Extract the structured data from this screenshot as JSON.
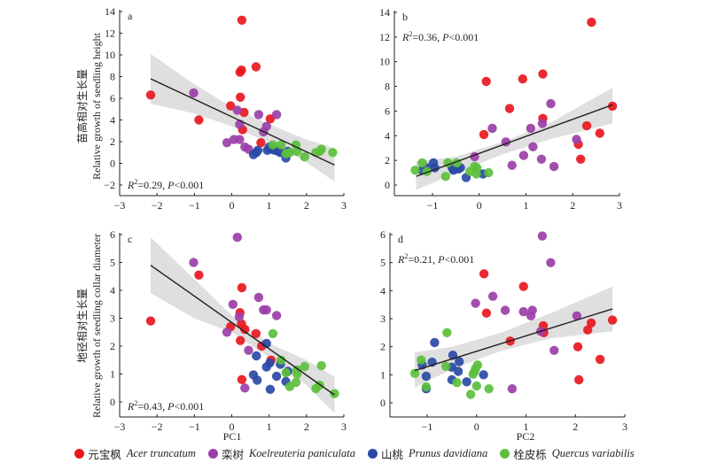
{
  "legend": [
    {
      "key": "acer",
      "cn": "元宝枫",
      "sci": "Acer truncatum",
      "color": "#e8181e"
    },
    {
      "key": "koel",
      "cn": "栾树",
      "sci": "Koelreuteria paniculata",
      "color": "#9b3fa8"
    },
    {
      "key": "prunus",
      "cn": "山桃",
      "sci": "Prunus davidiana",
      "color": "#2a4aa6"
    },
    {
      "key": "quercus",
      "cn": "栓皮栎",
      "sci": "Quercus variabilis",
      "color": "#5cbf3c"
    }
  ],
  "y_labels": {
    "top_cn": "苗高相对生长量",
    "top_en": "Relative growth of seedling height",
    "bottom_cn": "地径相对生长量",
    "bottom_en": "Relative growth of seedling collar diameter"
  },
  "x_labels": {
    "left": "PC1",
    "right": "PC2"
  },
  "chart_data": [
    {
      "type": "scatter",
      "panel": "a",
      "xlabel": "PC1",
      "ylabel": "苗高相对生长量 Relative growth of seedling height",
      "xlim": [
        -3,
        3
      ],
      "ylim": [
        -3,
        14
      ],
      "xticks": [
        -3,
        -2,
        -1,
        0,
        1,
        2,
        3
      ],
      "yticks": [
        -2,
        0,
        2,
        4,
        6,
        8,
        10,
        12,
        14
      ],
      "stat": {
        "r2": "0.29",
        "p": "0.001",
        "position": "bottom-left"
      },
      "fit": {
        "x": [
          -2.17,
          2.75
        ],
        "y": [
          7.8,
          -0.15
        ]
      },
      "ci_band": {
        "x": [
          -2.17,
          -1,
          0,
          1,
          2,
          2.75
        ],
        "upper": [
          10.1,
          7.3,
          5.2,
          3.6,
          2.2,
          1.4
        ],
        "lower": [
          5.5,
          4.6,
          3.4,
          1.9,
          0.1,
          -1.7
        ]
      },
      "series": [
        {
          "name": "acer",
          "points": [
            [
              -2.17,
              6.3
            ],
            [
              -0.88,
              4.0
            ],
            [
              -0.03,
              5.3
            ],
            [
              0.27,
              13.2
            ],
            [
              0.22,
              8.4
            ],
            [
              0.26,
              8.6
            ],
            [
              0.65,
              8.9
            ],
            [
              0.23,
              6.1
            ],
            [
              0.33,
              4.7
            ],
            [
              0.29,
              3.1
            ],
            [
              1.03,
              4.1
            ],
            [
              0.78,
              1.9
            ]
          ]
        },
        {
          "name": "koel",
          "points": [
            [
              -1.02,
              6.5
            ],
            [
              0.15,
              4.9
            ],
            [
              0.21,
              3.6
            ],
            [
              0.72,
              4.5
            ],
            [
              1.2,
              4.5
            ],
            [
              0.93,
              3.4
            ],
            [
              0.85,
              2.9
            ],
            [
              -0.13,
              1.9
            ],
            [
              0.06,
              2.2
            ],
            [
              0.21,
              2.2
            ],
            [
              0.35,
              1.5
            ],
            [
              0.45,
              1.3
            ]
          ]
        },
        {
          "name": "prunus",
          "points": [
            [
              0.58,
              0.8
            ],
            [
              0.66,
              1.0
            ],
            [
              0.7,
              1.2
            ],
            [
              0.95,
              1.2
            ],
            [
              1.0,
              1.5
            ],
            [
              1.05,
              1.3
            ],
            [
              1.15,
              1.2
            ],
            [
              1.25,
              1.1
            ],
            [
              1.3,
              1.0
            ],
            [
              1.45,
              0.5
            ],
            [
              1.5,
              1.1
            ]
          ]
        },
        {
          "name": "quercus",
          "points": [
            [
              1.1,
              1.7
            ],
            [
              1.32,
              1.7
            ],
            [
              1.45,
              0.9
            ],
            [
              1.55,
              1.0
            ],
            [
              1.72,
              1.7
            ],
            [
              1.75,
              1.1
            ],
            [
              1.95,
              0.6
            ],
            [
              2.25,
              1.0
            ],
            [
              2.35,
              1.1
            ],
            [
              2.4,
              1.3
            ],
            [
              2.7,
              1.0
            ]
          ]
        }
      ]
    },
    {
      "type": "scatter",
      "panel": "b",
      "xlabel": "PC2",
      "ylabel": "",
      "xlim": [
        -1.8,
        3
      ],
      "ylim": [
        -0.8,
        14
      ],
      "xticks": [
        -1,
        0,
        1,
        2,
        3
      ],
      "yticks": [
        0,
        2,
        4,
        6,
        8,
        10,
        12,
        14
      ],
      "stat": {
        "r2": "0.36",
        "p": "0.001",
        "position": "top-left"
      },
      "fit": {
        "x": [
          -1.35,
          2.85
        ],
        "y": [
          0.7,
          6.5
        ]
      },
      "ci_band": {
        "x": [
          -1.35,
          -0.5,
          0.5,
          1.5,
          2.85
        ],
        "upper": [
          1.9,
          2.3,
          3.5,
          5.0,
          7.9
        ],
        "lower": [
          -0.4,
          1.0,
          2.5,
          3.7,
          5.0
        ]
      },
      "series": [
        {
          "name": "acer",
          "points": [
            [
              0.15,
              8.4
            ],
            [
              0.93,
              8.6
            ],
            [
              1.36,
              9.0
            ],
            [
              2.4,
              13.2
            ],
            [
              0.65,
              6.2
            ],
            [
              1.36,
              5.4
            ],
            [
              0.1,
              4.1
            ],
            [
              2.3,
              4.8
            ],
            [
              2.85,
              6.4
            ],
            [
              2.58,
              4.2
            ],
            [
              2.12,
              3.3
            ],
            [
              2.17,
              2.1
            ]
          ]
        },
        {
          "name": "koel",
          "points": [
            [
              1.53,
              6.6
            ],
            [
              1.35,
              5.0
            ],
            [
              1.1,
              4.6
            ],
            [
              0.28,
              4.6
            ],
            [
              0.57,
              3.5
            ],
            [
              1.15,
              3.1
            ],
            [
              2.08,
              3.7
            ],
            [
              -0.1,
              2.3
            ],
            [
              0.95,
              2.4
            ],
            [
              1.33,
              2.1
            ],
            [
              0.7,
              1.6
            ],
            [
              1.6,
              1.5
            ]
          ]
        },
        {
          "name": "prunus",
          "points": [
            [
              -1.22,
              1.2
            ],
            [
              -1.12,
              1.4
            ],
            [
              -0.98,
              1.8
            ],
            [
              -0.95,
              1.4
            ],
            [
              -0.58,
              1.4
            ],
            [
              -0.55,
              1.2
            ],
            [
              -0.45,
              1.3
            ],
            [
              -0.4,
              1.4
            ],
            [
              -0.28,
              0.6
            ],
            [
              0.08,
              0.9
            ]
          ]
        },
        {
          "name": "quercus",
          "points": [
            [
              -1.37,
              1.2
            ],
            [
              -1.22,
              1.8
            ],
            [
              -1.12,
              1.1
            ],
            [
              -0.72,
              0.7
            ],
            [
              -0.67,
              1.8
            ],
            [
              -0.48,
              1.8
            ],
            [
              -0.2,
              1.1
            ],
            [
              -0.1,
              1.5
            ],
            [
              -0.05,
              1.4
            ],
            [
              -0.06,
              0.9
            ],
            [
              0.2,
              1.0
            ]
          ]
        }
      ]
    },
    {
      "type": "scatter",
      "panel": "c",
      "xlabel": "PC1",
      "ylabel": "地径相对生长量 Relative growth of seedling collar diameter",
      "xlim": [
        -3,
        3
      ],
      "ylim": [
        -0.5,
        6
      ],
      "xticks": [
        -3,
        -2,
        -1,
        0,
        1,
        2,
        3
      ],
      "yticks": [
        0,
        1,
        2,
        3,
        4,
        5,
        6
      ],
      "stat": {
        "r2": "0.43",
        "p": "0.001",
        "position": "bottom-left"
      },
      "fit": {
        "x": [
          -2.17,
          2.75
        ],
        "y": [
          4.9,
          0.25
        ]
      },
      "ci_band": {
        "x": [
          -2.17,
          -1,
          0,
          1,
          2,
          2.75
        ],
        "upper": [
          5.9,
          4.4,
          3.1,
          2.1,
          1.5,
          0.9
        ],
        "lower": [
          3.9,
          3.0,
          2.5,
          1.6,
          0.6,
          -0.4
        ]
      },
      "series": [
        {
          "name": "acer",
          "points": [
            [
              -2.17,
              2.9
            ],
            [
              -0.88,
              4.55
            ],
            [
              0.27,
              4.1
            ],
            [
              0.22,
              3.2
            ],
            [
              0.26,
              2.8
            ],
            [
              0.35,
              2.6
            ],
            [
              -0.03,
              2.7
            ],
            [
              0.65,
              2.45
            ],
            [
              0.23,
              2.2
            ],
            [
              0.8,
              2.0
            ],
            [
              1.05,
              1.5
            ],
            [
              0.27,
              0.8
            ]
          ]
        },
        {
          "name": "koel",
          "points": [
            [
              0.15,
              5.9
            ],
            [
              -1.02,
              5.0
            ],
            [
              0.72,
              3.75
            ],
            [
              0.03,
              3.5
            ],
            [
              0.85,
              3.3
            ],
            [
              0.93,
              3.3
            ],
            [
              1.2,
              3.1
            ],
            [
              0.2,
              3.05
            ],
            [
              -0.13,
              2.5
            ],
            [
              0.45,
              1.85
            ],
            [
              0.35,
              0.5
            ]
          ]
        },
        {
          "name": "prunus",
          "points": [
            [
              0.93,
              2.1
            ],
            [
              0.66,
              1.65
            ],
            [
              1.02,
              1.4
            ],
            [
              1.3,
              1.35
            ],
            [
              0.93,
              1.25
            ],
            [
              1.5,
              1.1
            ],
            [
              0.58,
              0.97
            ],
            [
              1.2,
              0.92
            ],
            [
              0.68,
              0.78
            ],
            [
              1.45,
              0.73
            ],
            [
              1.03,
              0.45
            ]
          ]
        },
        {
          "name": "quercus",
          "points": [
            [
              1.1,
              2.45
            ],
            [
              1.32,
              1.5
            ],
            [
              1.95,
              1.27
            ],
            [
              2.4,
              1.3
            ],
            [
              1.75,
              1.15
            ],
            [
              1.75,
              1.0
            ],
            [
              1.45,
              1.05
            ],
            [
              1.72,
              0.7
            ],
            [
              1.55,
              0.55
            ],
            [
              2.35,
              0.6
            ],
            [
              2.25,
              0.48
            ],
            [
              2.75,
              0.3
            ]
          ]
        }
      ]
    },
    {
      "type": "scatter",
      "panel": "d",
      "xlabel": "PC2",
      "ylabel": "",
      "xlim": [
        -1.75,
        3
      ],
      "ylim": [
        -0.5,
        6
      ],
      "xticks": [
        -1,
        0,
        1,
        2,
        3
      ],
      "yticks": [
        0,
        1,
        2,
        3,
        4,
        5,
        6
      ],
      "stat": {
        "r2": "0.21",
        "p": "0.001",
        "position": "top-left"
      },
      "fit": {
        "x": [
          -1.25,
          2.75
        ],
        "y": [
          1.15,
          3.35
        ]
      },
      "ci_band": {
        "x": [
          -1.25,
          -0.5,
          0.5,
          1.5,
          2.75
        ],
        "upper": [
          1.8,
          2.0,
          2.5,
          3.2,
          4.15
        ],
        "lower": [
          0.55,
          1.2,
          1.85,
          2.3,
          2.55
        ]
      },
      "series": [
        {
          "name": "acer",
          "points": [
            [
              0.15,
              4.6
            ],
            [
              0.95,
              4.15
            ],
            [
              0.2,
              3.2
            ],
            [
              1.35,
              2.75
            ],
            [
              1.36,
              2.5
            ],
            [
              0.68,
              2.2
            ],
            [
              2.05,
              2.0
            ],
            [
              2.25,
              2.6
            ],
            [
              2.32,
              2.85
            ],
            [
              2.75,
              2.95
            ],
            [
              2.5,
              1.55
            ],
            [
              2.07,
              0.82
            ]
          ]
        },
        {
          "name": "koel",
          "points": [
            [
              1.33,
              5.95
            ],
            [
              1.5,
              5.0
            ],
            [
              0.33,
              3.8
            ],
            [
              -0.02,
              3.55
            ],
            [
              0.58,
              3.3
            ],
            [
              0.95,
              3.25
            ],
            [
              1.13,
              3.3
            ],
            [
              1.1,
              3.1
            ],
            [
              2.03,
              3.1
            ],
            [
              1.3,
              2.55
            ],
            [
              1.57,
              1.87
            ],
            [
              0.72,
              0.5
            ]
          ]
        },
        {
          "name": "prunus",
          "points": [
            [
              -0.85,
              2.15
            ],
            [
              -0.48,
              1.7
            ],
            [
              -0.9,
              1.45
            ],
            [
              -1.1,
              1.35
            ],
            [
              -0.35,
              1.47
            ],
            [
              -0.5,
              1.27
            ],
            [
              -0.37,
              1.12
            ],
            [
              -1.02,
              0.95
            ],
            [
              0.14,
              1.0
            ],
            [
              -0.5,
              0.82
            ],
            [
              -0.2,
              0.75
            ],
            [
              -1.02,
              0.5
            ]
          ]
        },
        {
          "name": "quercus",
          "points": [
            [
              -0.6,
              2.5
            ],
            [
              -1.12,
              1.53
            ],
            [
              -0.62,
              1.3
            ],
            [
              -1.25,
              1.05
            ],
            [
              0.02,
              1.35
            ],
            [
              -0.02,
              1.22
            ],
            [
              -0.05,
              1.1
            ],
            [
              -0.07,
              1.02
            ],
            [
              -1.02,
              0.57
            ],
            [
              -0.4,
              0.72
            ],
            [
              0.0,
              0.6
            ],
            [
              0.25,
              0.5
            ],
            [
              -0.12,
              0.3
            ]
          ]
        }
      ]
    }
  ]
}
